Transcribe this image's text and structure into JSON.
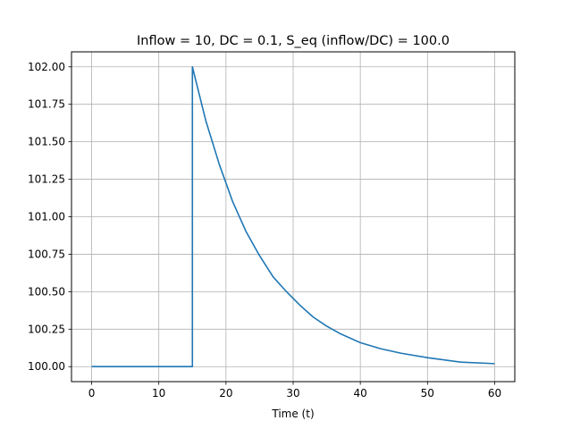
{
  "chart_data": {
    "type": "line",
    "title": "Inflow = 10, DC = 0.1, S_eq (inflow/DC) = 100.0",
    "xlabel": "Time (t)",
    "ylabel": "",
    "xlim": [
      -3,
      63
    ],
    "ylim": [
      99.9,
      102.1
    ],
    "xticks": [
      0,
      10,
      20,
      30,
      40,
      50,
      60
    ],
    "yticks": [
      100.0,
      100.25,
      100.5,
      100.75,
      101.0,
      101.25,
      101.5,
      101.75,
      102.0
    ],
    "xtick_labels": [
      "0",
      "10",
      "20",
      "30",
      "40",
      "50",
      "60"
    ],
    "ytick_labels": [
      "100.00",
      "100.25",
      "100.50",
      "100.75",
      "101.00",
      "101.25",
      "101.50",
      "101.75",
      "102.00"
    ],
    "grid": true,
    "series": [
      {
        "color": "#1f77b4",
        "x": [
          0,
          15,
          15,
          17,
          19,
          21,
          23,
          25,
          27,
          29,
          31,
          33,
          35,
          37,
          40,
          43,
          46,
          50,
          55,
          60
        ],
        "y": [
          100.0,
          100.0,
          102.0,
          101.64,
          101.35,
          101.1,
          100.9,
          100.74,
          100.6,
          100.5,
          100.41,
          100.33,
          100.27,
          100.22,
          100.16,
          100.12,
          100.09,
          100.06,
          100.03,
          100.02
        ]
      }
    ]
  }
}
